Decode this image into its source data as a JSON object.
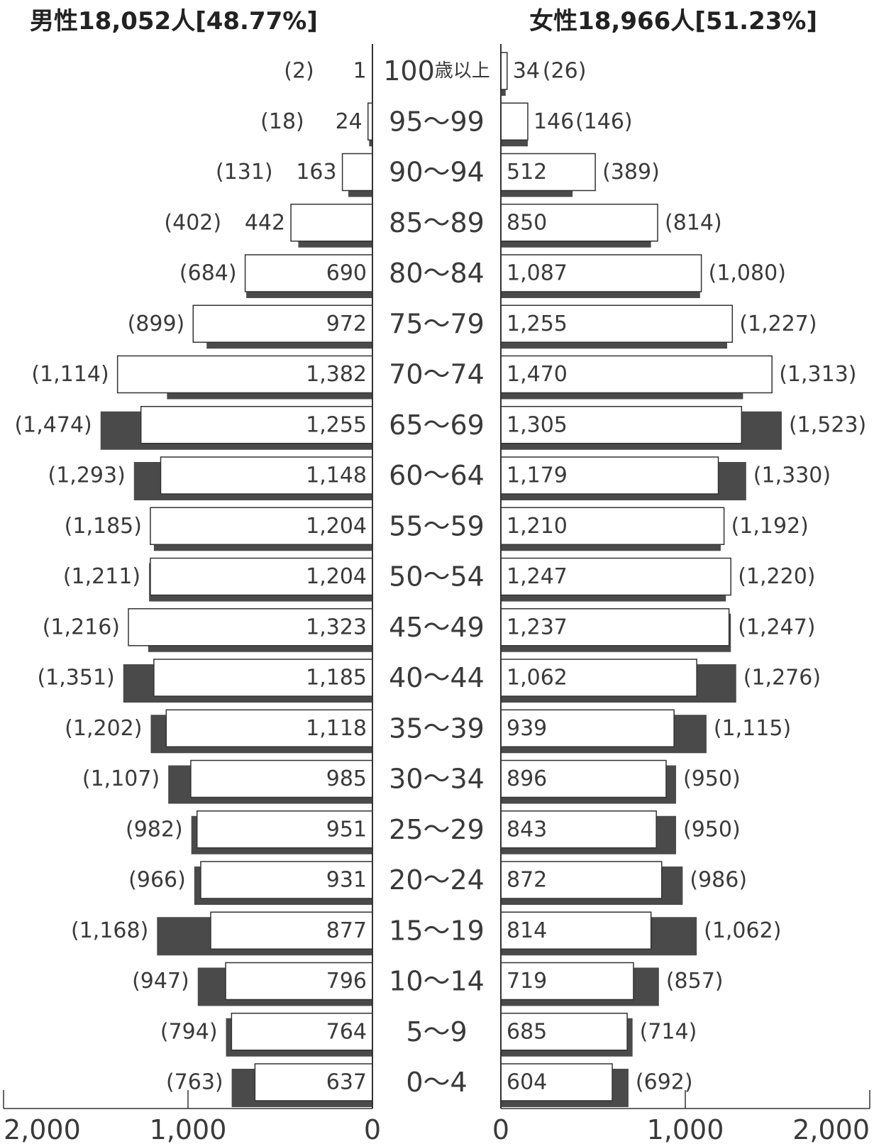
{
  "header": {
    "male": "男性18,052人[48.77%]",
    "female": "女性18,966人[51.23%]"
  },
  "colors": {
    "prev": "#4a4a4a",
    "current": "#ffffff",
    "outline": "#333333"
  },
  "chart_data": {
    "type": "bar",
    "orientation": "population-pyramid",
    "categories": [
      "100歳以上",
      "95〜99",
      "90〜94",
      "85〜89",
      "80〜84",
      "75〜79",
      "70〜74",
      "65〜69",
      "60〜64",
      "55〜59",
      "50〜54",
      "45〜49",
      "40〜44",
      "35〜39",
      "30〜34",
      "25〜29",
      "20〜24",
      "15〜19",
      "10〜14",
      "5〜9",
      "0〜4"
    ],
    "male": {
      "current": [
        1,
        24,
        163,
        442,
        690,
        972,
        1382,
        1255,
        1148,
        1204,
        1204,
        1323,
        1185,
        1118,
        985,
        951,
        931,
        877,
        796,
        764,
        637
      ],
      "previous": [
        2,
        18,
        131,
        402,
        684,
        899,
        1114,
        1474,
        1293,
        1185,
        1211,
        1216,
        1351,
        1202,
        1107,
        982,
        966,
        1168,
        947,
        794,
        763
      ],
      "current_labels": [
        "1",
        "24",
        "163",
        "442",
        "690",
        "972",
        "1,382",
        "1,255",
        "1,148",
        "1,204",
        "1,204",
        "1,323",
        "1,185",
        "1,118",
        "985",
        "951",
        "931",
        "877",
        "796",
        "764",
        "637"
      ],
      "previous_labels": [
        "(2)",
        "(18)",
        "(131)",
        "(402)",
        "(684)",
        "(899)",
        "(1,114)",
        "(1,474)",
        "(1,293)",
        "(1,185)",
        "(1,211)",
        "(1,216)",
        "(1,351)",
        "(1,202)",
        "(1,107)",
        "(982)",
        "(966)",
        "(1,168)",
        "(947)",
        "(794)",
        "(763)"
      ]
    },
    "female": {
      "current": [
        34,
        146,
        512,
        850,
        1087,
        1255,
        1470,
        1305,
        1179,
        1210,
        1247,
        1237,
        1062,
        939,
        896,
        843,
        872,
        814,
        719,
        685,
        604
      ],
      "previous": [
        26,
        146,
        389,
        814,
        1080,
        1227,
        1313,
        1523,
        1330,
        1192,
        1220,
        1247,
        1276,
        1115,
        950,
        950,
        986,
        1062,
        857,
        714,
        692
      ],
      "current_labels": [
        "34",
        "146",
        "512",
        "850",
        "1,087",
        "1,255",
        "1,470",
        "1,305",
        "1,179",
        "1,210",
        "1,247",
        "1,237",
        "1,062",
        "939",
        "896",
        "843",
        "872",
        "814",
        "719",
        "685",
        "604"
      ],
      "previous_labels": [
        "(26)",
        "(146)",
        "(389)",
        "(814)",
        "(1,080)",
        "(1,227)",
        "(1,313)",
        "(1,523)",
        "(1,330)",
        "(1,192)",
        "(1,220)",
        "(1,247)",
        "(1,276)",
        "(1,115)",
        "(950)",
        "(950)",
        "(986)",
        "(1,062)",
        "(857)",
        "(714)",
        "(692)"
      ]
    },
    "top_age_label": {
      "number": "100",
      "suffix": "歳以上"
    },
    "x_ticks_left": [
      "2,000",
      "1,000",
      "0"
    ],
    "x_ticks_right": [
      "0",
      "1,000",
      "2,000"
    ],
    "xlim": [
      0,
      2000
    ],
    "legend": "none",
    "grid": false
  }
}
